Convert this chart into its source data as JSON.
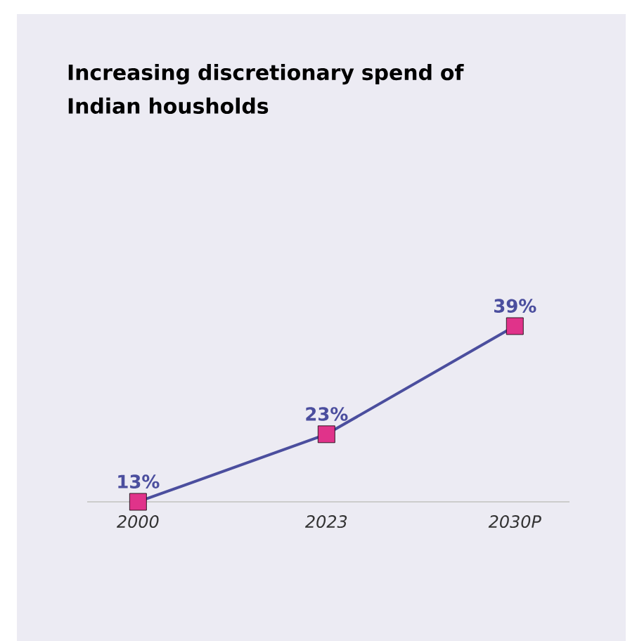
{
  "chart_data": {
    "type": "line",
    "title": "Increasing discretionary spend of Indian housholds",
    "categories": [
      "2000",
      "2023",
      "2030P"
    ],
    "series": [
      {
        "color": "#4b4e9e",
        "colors": [
          "#e0338a",
          "#e0338a",
          "#e0338a"
        ],
        "values": [
          13,
          23,
          39
        ],
        "value_labels": [
          "13%",
          "23%",
          "39%"
        ]
      }
    ],
    "marker": "square",
    "tick_labels": "x"
  }
}
